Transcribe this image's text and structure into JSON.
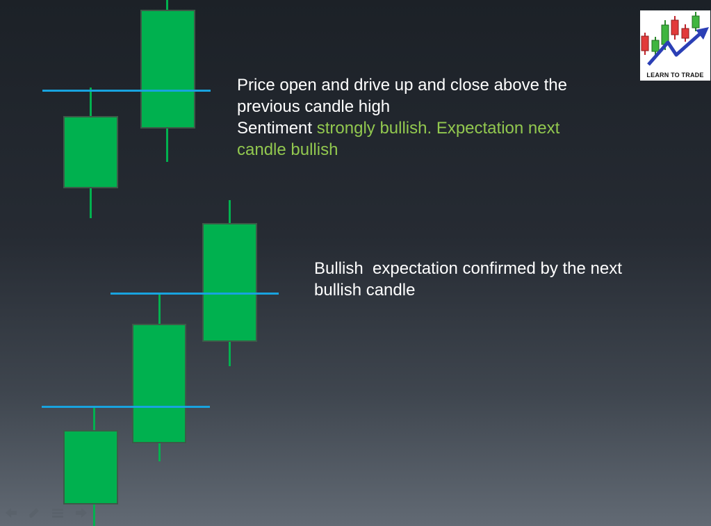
{
  "slide": {
    "annotations": {
      "first": {
        "line1": "Price open and drive up and close above the",
        "line2": "previous candle high",
        "sentiment_label": "Sentiment",
        "sentiment_value_part1": "strongly bullish. Expectation next",
        "sentiment_value_part2": "candle bullish"
      },
      "second": {
        "line1": "Bullish  expectation confirmed by the next",
        "line2": "bullish candle"
      }
    },
    "logo": {
      "caption": "LEARN TO TRADE"
    }
  },
  "colors": {
    "bullish_candle": "#00b14f",
    "reference_line": "#18a3df",
    "highlight_text": "#92c84f",
    "body_text": "#ffffff"
  },
  "nav_icons": [
    "back-arrow-icon",
    "pen-icon",
    "menu-icon",
    "forward-arrow-icon"
  ]
}
